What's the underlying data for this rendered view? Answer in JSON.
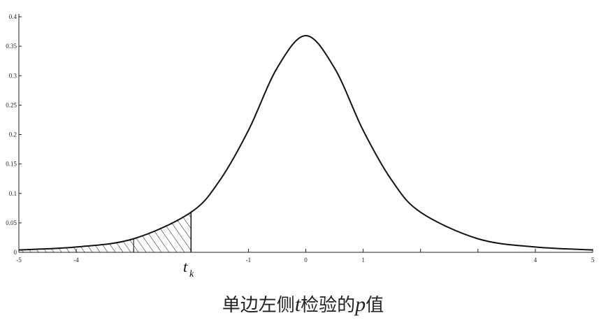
{
  "chart_data": {
    "type": "line",
    "title": "",
    "xlabel": "",
    "ylabel": "",
    "xlim": [
      -5,
      5
    ],
    "ylim": [
      0,
      0.4
    ],
    "x_ticks": [
      -5,
      -4,
      -3,
      -2,
      -1,
      0,
      1,
      2,
      3,
      4,
      5
    ],
    "x_tick_labels": [
      "-5",
      "-4",
      "",
      "",
      "-1",
      "0",
      "1",
      "",
      "",
      "4",
      "5"
    ],
    "y_ticks": [
      0,
      0.05,
      0.1,
      0.15,
      0.2,
      0.25,
      0.3,
      0.35,
      0.4
    ],
    "y_tick_labels": [
      "0",
      "0.05",
      "0.1",
      "0.15",
      "0.2",
      "0.25",
      "0.3",
      "0.35",
      "0.4"
    ],
    "series": [
      {
        "x": [
          -5,
          -4,
          -3,
          -2,
          -1.5,
          -1,
          -0.5,
          0,
          0.5,
          1,
          1.5,
          2,
          3,
          4,
          5
        ],
        "y": [
          0.004,
          0.009,
          0.023,
          0.068,
          0.122,
          0.207,
          0.313,
          0.368,
          0.313,
          0.207,
          0.122,
          0.068,
          0.023,
          0.009,
          0.004
        ]
      }
    ],
    "shaded_region": {
      "from": -5,
      "to": -2,
      "style": "hatched"
    },
    "annotation": {
      "x": -2,
      "label": "t",
      "subscript": "k"
    },
    "grid": false
  },
  "caption": {
    "prefix": "单边左侧",
    "var1": "t",
    "middle": "检验的",
    "var2": "p",
    "suffix": "值"
  }
}
